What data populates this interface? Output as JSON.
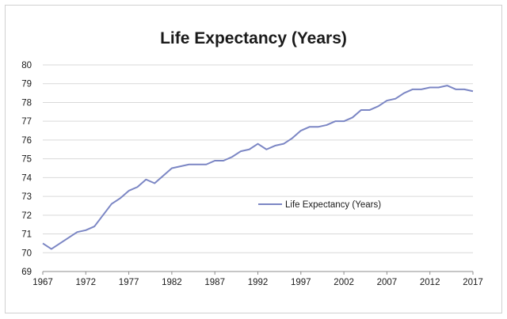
{
  "chart_data": {
    "type": "line",
    "title": "Life Expectancy (Years)",
    "xlabel": "",
    "ylabel": "",
    "xlim": [
      1967,
      2017
    ],
    "ylim": [
      69,
      80
    ],
    "grid": true,
    "legend_position": "center-right",
    "x_ticks": [
      1967,
      1972,
      1977,
      1982,
      1987,
      1992,
      1997,
      2002,
      2007,
      2012,
      2017
    ],
    "y_ticks": [
      69,
      70,
      71,
      72,
      73,
      74,
      75,
      76,
      77,
      78,
      79,
      80
    ],
    "series": [
      {
        "name": "Life Expectancy (Years)",
        "color": "#7b86c4",
        "x": [
          1967,
          1968,
          1969,
          1970,
          1971,
          1972,
          1973,
          1974,
          1975,
          1976,
          1977,
          1978,
          1979,
          1980,
          1981,
          1982,
          1983,
          1984,
          1985,
          1986,
          1987,
          1988,
          1989,
          1990,
          1991,
          1992,
          1993,
          1994,
          1995,
          1996,
          1997,
          1998,
          1999,
          2000,
          2001,
          2002,
          2003,
          2004,
          2005,
          2006,
          2007,
          2008,
          2009,
          2010,
          2011,
          2012,
          2013,
          2014,
          2015,
          2016,
          2017
        ],
        "values": [
          70.5,
          70.2,
          70.5,
          70.8,
          71.1,
          71.2,
          71.4,
          72.0,
          72.6,
          72.9,
          73.3,
          73.5,
          73.9,
          73.7,
          74.1,
          74.5,
          74.6,
          74.7,
          74.7,
          74.7,
          74.9,
          74.9,
          75.1,
          75.4,
          75.5,
          75.8,
          75.5,
          75.7,
          75.8,
          76.1,
          76.5,
          76.7,
          76.7,
          76.8,
          77.0,
          77.0,
          77.2,
          77.6,
          77.6,
          77.8,
          78.1,
          78.2,
          78.5,
          78.7,
          78.7,
          78.8,
          78.8,
          78.9,
          78.7,
          78.7,
          78.6
        ]
      }
    ]
  }
}
